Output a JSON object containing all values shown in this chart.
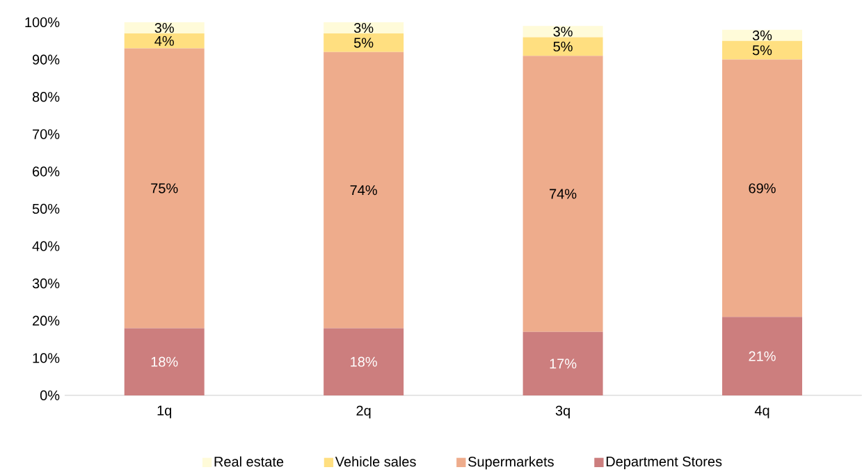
{
  "chart_data": {
    "type": "bar",
    "stacked": true,
    "categories": [
      "1q",
      "2q",
      "3q",
      "4q"
    ],
    "series": [
      {
        "name": "Department Stores",
        "color": "#cc7e7e",
        "values": [
          18,
          18,
          17,
          21
        ],
        "value_labels": [
          "18%",
          "18%",
          "17%",
          "21%"
        ]
      },
      {
        "name": "Supermarkets",
        "color": "#eeac8c",
        "values": [
          75,
          74,
          74,
          69
        ],
        "value_labels": [
          "75%",
          "74%",
          "74%",
          "69%"
        ]
      },
      {
        "name": "Vehicle sales",
        "color": "#ffdf80",
        "values": [
          4,
          5,
          5,
          5
        ],
        "value_labels": [
          "4%",
          "5%",
          "5%",
          "5%"
        ]
      },
      {
        "name": "Real estate",
        "color": "#fffbd9",
        "values": [
          3,
          3,
          3,
          3
        ],
        "value_labels": [
          "3%",
          "3%",
          "3%",
          "3%"
        ]
      }
    ],
    "ylim": [
      0,
      100
    ],
    "yticks": [
      {
        "value": 0,
        "label": "0%"
      },
      {
        "value": 10,
        "label": "10%"
      },
      {
        "value": 20,
        "label": "20%"
      },
      {
        "value": 30,
        "label": "30%"
      },
      {
        "value": 40,
        "label": "40%"
      },
      {
        "value": 50,
        "label": "50%"
      },
      {
        "value": 60,
        "label": "60%"
      },
      {
        "value": 70,
        "label": "70%"
      },
      {
        "value": 80,
        "label": "80%"
      },
      {
        "value": 90,
        "label": "90%"
      },
      {
        "value": 100,
        "label": "100%"
      }
    ],
    "legend": "bottom"
  }
}
